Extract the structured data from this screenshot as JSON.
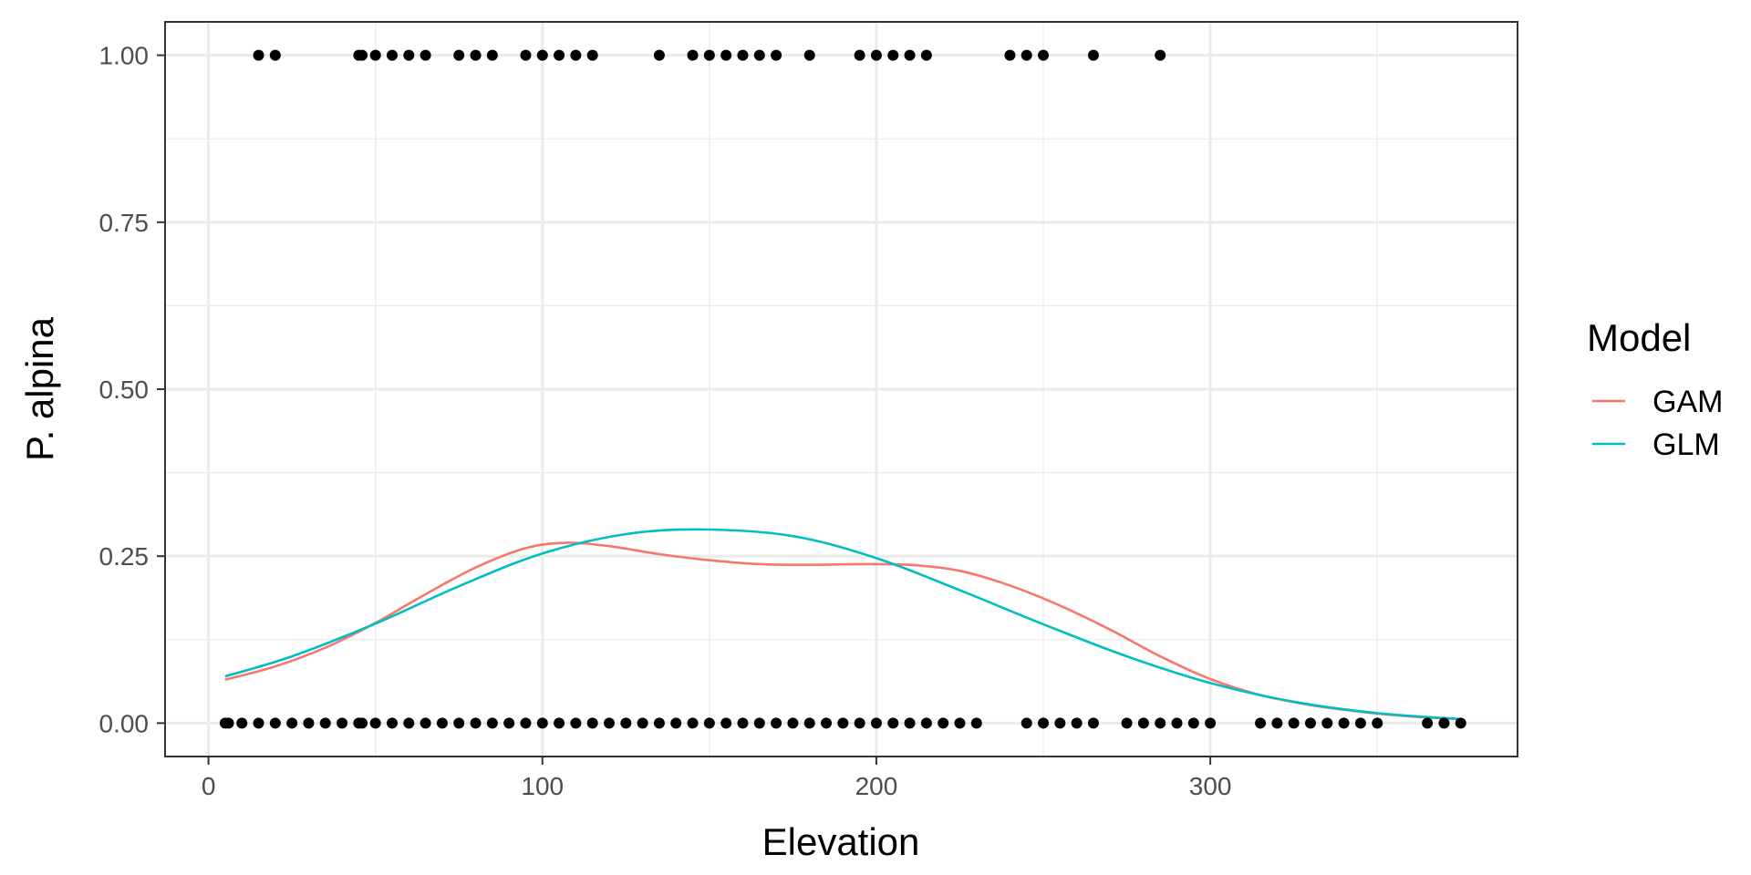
{
  "chart_data": {
    "type": "scatter",
    "xlabel": "Elevation",
    "ylabel": "P. alpina",
    "xlim": [
      -13,
      392
    ],
    "ylim": [
      -0.05,
      1.05
    ],
    "x_ticks": [
      0,
      100,
      200,
      300
    ],
    "x_tick_labels": [
      "0",
      "100",
      "200",
      "300"
    ],
    "y_ticks": [
      0,
      0.25,
      0.5,
      0.75,
      1.0
    ],
    "y_tick_labels": [
      "0.00",
      "0.25",
      "0.50",
      "0.75",
      "1.00"
    ],
    "grid": true,
    "legend": {
      "title": "Model",
      "position": "right",
      "entries": [
        {
          "name": "GAM",
          "color": "#F8766D"
        },
        {
          "name": "GLM",
          "color": "#00BFC4"
        }
      ]
    },
    "points": {
      "color": "#000000",
      "present_x": [
        15,
        20,
        45,
        46,
        50,
        55,
        60,
        65,
        75,
        80,
        85,
        95,
        100,
        105,
        110,
        115,
        135,
        145,
        150,
        155,
        160,
        165,
        170,
        180,
        195,
        200,
        205,
        210,
        215,
        240,
        245,
        250,
        265,
        285
      ],
      "present_y": 1,
      "absent_x": [
        5,
        6,
        10,
        15,
        20,
        25,
        30,
        35,
        40,
        45,
        46,
        50,
        55,
        60,
        65,
        70,
        75,
        80,
        85,
        90,
        95,
        100,
        105,
        110,
        115,
        120,
        125,
        130,
        135,
        140,
        145,
        150,
        155,
        160,
        165,
        170,
        175,
        180,
        185,
        190,
        195,
        200,
        205,
        210,
        215,
        220,
        225,
        230,
        245,
        250,
        255,
        260,
        265,
        275,
        280,
        285,
        290,
        295,
        300,
        315,
        320,
        325,
        330,
        335,
        340,
        345,
        350,
        365,
        370,
        375
      ],
      "absent_y": 0
    },
    "series": [
      {
        "name": "GAM",
        "color": "#F8766D",
        "x": [
          5,
          20,
          35,
          50,
          65,
          80,
          95,
          107,
          120,
          135,
          150,
          165,
          180,
          195,
          210,
          225,
          240,
          255,
          270,
          285,
          300,
          315,
          330,
          345,
          360,
          375
        ],
        "y": [
          0.065,
          0.085,
          0.113,
          0.15,
          0.193,
          0.233,
          0.262,
          0.27,
          0.265,
          0.253,
          0.244,
          0.238,
          0.237,
          0.238,
          0.237,
          0.228,
          0.206,
          0.176,
          0.14,
          0.1,
          0.066,
          0.042,
          0.027,
          0.017,
          0.01,
          0.006
        ]
      },
      {
        "name": "GLM",
        "color": "#00BFC4",
        "x": [
          5,
          25,
          50,
          75,
          100,
          125,
          148,
          175,
          200,
          225,
          250,
          275,
          300,
          325,
          350,
          375
        ],
        "y": [
          0.07,
          0.1,
          0.149,
          0.205,
          0.254,
          0.283,
          0.29,
          0.28,
          0.247,
          0.199,
          0.148,
          0.1,
          0.06,
          0.032,
          0.015,
          0.006
        ]
      }
    ]
  }
}
